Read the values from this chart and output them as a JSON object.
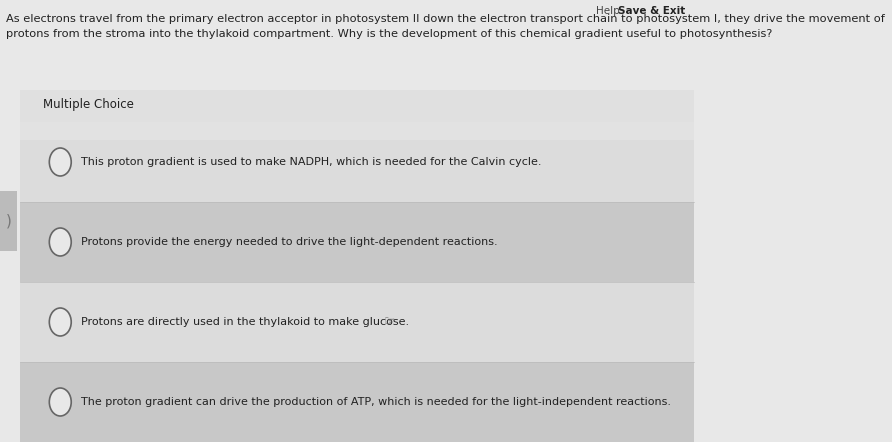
{
  "help_text": "Help",
  "save_exit_text": "Save & Exit",
  "question_line1": "As electrons travel from the primary electron acceptor in photosystem II down the electron transport chain to photosystem I, they drive the movement of",
  "question_line2": "protons from the stroma into the thylakoid compartment. Why is the development of this chemical gradient useful to photosynthesis?",
  "section_label": "Multiple Choice",
  "choices": [
    "This proton gradient is used to make NADPH, which is needed for the Calvin cycle.",
    "Protons provide the energy needed to drive the light-dependent reactions.",
    "Protons are directly used in the thylakoid to make glucose.",
    "The proton gradient can drive the production of ATP, which is needed for the light-independent reactions."
  ],
  "top_bg": "#e8e8e8",
  "panel_bg": "#d8d8d8",
  "row_bg_light": "#dcdcdc",
  "row_bg_dark": "#c8c8c8",
  "label_bar_bg": "#e0e0e0",
  "text_color": "#222222",
  "help_color": "#444444",
  "save_color": "#222222",
  "circle_color": "#666666",
  "left_tab_color": "#bbbbbb",
  "question_fontsize": 8.2,
  "choice_fontsize": 8.0,
  "label_fontsize": 8.5,
  "topbar_fontsize": 7.5
}
